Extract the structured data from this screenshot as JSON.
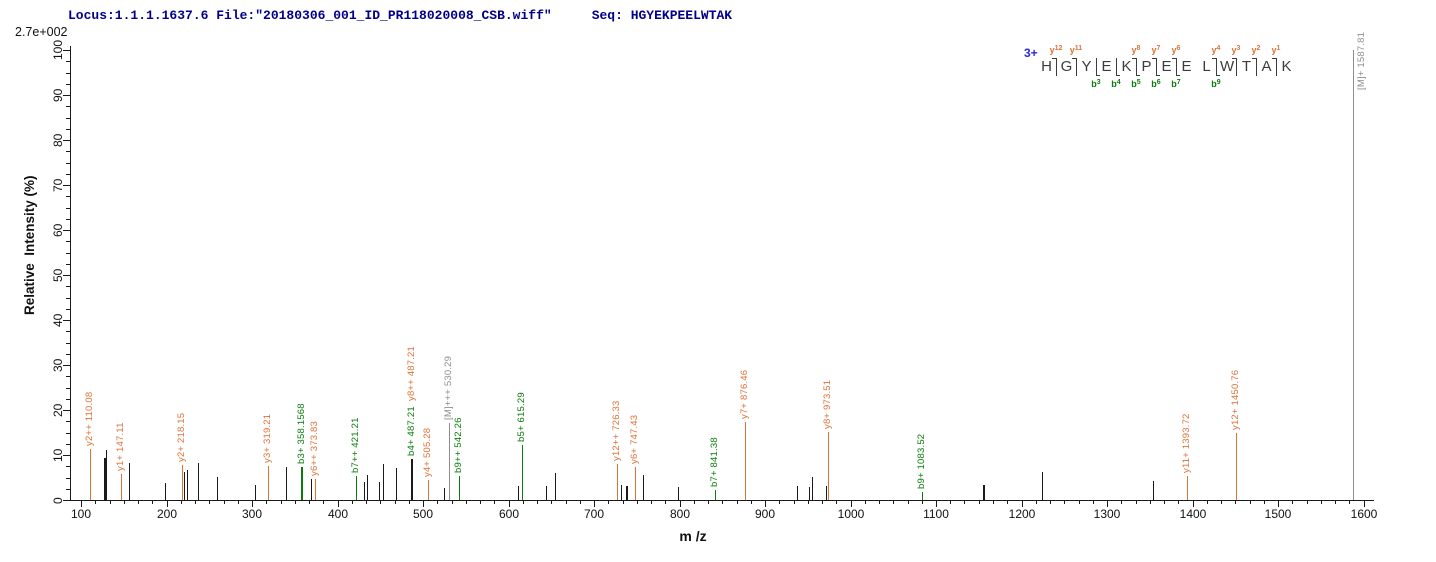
{
  "header": {
    "locus_file": "Locus:1.1.1.1637.6 File:\"20180306_001_ID_PR118020008_CSB.wiff\"",
    "seq_label_and_value": "Seq: HGYEKPEELWTAK"
  },
  "max_intensity_label": "2.7e+002",
  "colors": {
    "y_ion": "#DD7238",
    "b_ion": "#0B7B0B",
    "precursor": "#8E8E8E",
    "unassigned": "#1A1A1A",
    "header_text": "#00008B",
    "charge_state": "#2A2AD4",
    "sequence_letters": "#3C3C3C",
    "axis": "#1A1A1A"
  },
  "annotation": {
    "charge": "3+",
    "residues": [
      "H",
      "G",
      "Y",
      "E",
      "K",
      "P",
      "E",
      "E",
      "L",
      "W",
      "T",
      "A",
      "K"
    ],
    "y_ions": [
      {
        "name": "y",
        "num": "12",
        "cut": 1
      },
      {
        "name": "y",
        "num": "11",
        "cut": 2
      },
      {
        "name": "y",
        "num": "8",
        "cut": 5
      },
      {
        "name": "y",
        "num": "7",
        "cut": 6
      },
      {
        "name": "y",
        "num": "6",
        "cut": 7
      },
      {
        "name": "y",
        "num": "4",
        "cut": 9
      },
      {
        "name": "y",
        "num": "3",
        "cut": 10
      },
      {
        "name": "y",
        "num": "2",
        "cut": 11
      },
      {
        "name": "y",
        "num": "1",
        "cut": 12
      }
    ],
    "b_ions": [
      {
        "name": "b",
        "num": "3",
        "cut": 3
      },
      {
        "name": "b",
        "num": "4",
        "cut": 4
      },
      {
        "name": "b",
        "num": "5",
        "cut": 5
      },
      {
        "name": "b",
        "num": "6",
        "cut": 6
      },
      {
        "name": "b",
        "num": "7",
        "cut": 7
      },
      {
        "name": "b",
        "num": "9",
        "cut": 9
      }
    ]
  },
  "chart_data": {
    "type": "bar",
    "title": "MS/MS fragmentation spectrum",
    "xlabel": "m /z",
    "ylabel": "Relative  Intensity (%)",
    "xlim": [
      84,
      1612
    ],
    "ylim": [
      0,
      100
    ],
    "x_ticks": [
      100,
      200,
      300,
      400,
      500,
      600,
      700,
      800,
      900,
      1000,
      1100,
      1200,
      1300,
      1400,
      1500,
      1600
    ],
    "y_ticks": [
      0,
      10,
      20,
      30,
      40,
      50,
      60,
      70,
      80,
      90,
      100
    ],
    "grid": false,
    "peaks": [
      {
        "mz": 110.08,
        "intensity": 11.3,
        "type": "y",
        "labels": [
          {
            "text": "y2++ 110.08",
            "ion": "y"
          }
        ]
      },
      {
        "mz": 127.5,
        "intensity": 9.3,
        "type": "unassigned",
        "width": 2
      },
      {
        "mz": 129.8,
        "intensity": 11.1,
        "type": "unassigned"
      },
      {
        "mz": 147.11,
        "intensity": 5.8,
        "type": "y",
        "labels": [
          {
            "text": "y1+ 147.11",
            "ion": "y"
          }
        ]
      },
      {
        "mz": 156,
        "intensity": 8.2,
        "type": "unassigned"
      },
      {
        "mz": 198.5,
        "intensity": 3.8,
        "type": "unassigned"
      },
      {
        "mz": 218.15,
        "intensity": 7.8,
        "type": "y",
        "labels": [
          {
            "text": "y2+ 218.15",
            "ion": "y"
          }
        ]
      },
      {
        "mz": 220.5,
        "intensity": 6.2,
        "type": "unassigned"
      },
      {
        "mz": 223.5,
        "intensity": 6.7,
        "type": "unassigned"
      },
      {
        "mz": 237,
        "intensity": 8.2,
        "type": "unassigned"
      },
      {
        "mz": 259,
        "intensity": 5.1,
        "type": "unassigned"
      },
      {
        "mz": 303,
        "intensity": 3.3,
        "type": "unassigned"
      },
      {
        "mz": 319.21,
        "intensity": 7.6,
        "type": "y",
        "labels": [
          {
            "text": "y3+ 319.21",
            "ion": "y"
          }
        ]
      },
      {
        "mz": 340,
        "intensity": 7.3,
        "type": "unassigned"
      },
      {
        "mz": 358.1568,
        "intensity": 7.3,
        "type": "b",
        "width": 2,
        "labels": [
          {
            "text": "b3+ 358.1568",
            "ion": "b"
          }
        ]
      },
      {
        "mz": 369,
        "intensity": 4.7,
        "type": "unassigned"
      },
      {
        "mz": 373.83,
        "intensity": 4.7,
        "type": "y",
        "labels": [
          {
            "text": "y6++ 373.83",
            "ion": "y"
          }
        ]
      },
      {
        "mz": 421.21,
        "intensity": 5.3,
        "type": "b",
        "labels": [
          {
            "text": "b7++ 421.21",
            "ion": "b"
          }
        ]
      },
      {
        "mz": 431,
        "intensity": 4.0,
        "type": "unassigned"
      },
      {
        "mz": 435,
        "intensity": 5.6,
        "type": "unassigned"
      },
      {
        "mz": 449,
        "intensity": 4.0,
        "type": "unassigned"
      },
      {
        "mz": 453,
        "intensity": 8.0,
        "type": "unassigned"
      },
      {
        "mz": 468,
        "intensity": 7.1,
        "type": "unassigned"
      },
      {
        "mz": 487.21,
        "intensity": 9.1,
        "type": "unassigned",
        "width": 2,
        "labels": [
          {
            "text": "b4+ 487.21",
            "ion": "b"
          },
          {
            "text": "y8++ 487.21",
            "ion": "y"
          }
        ]
      },
      {
        "mz": 505.28,
        "intensity": 4.4,
        "type": "y",
        "labels": [
          {
            "text": "y4+ 505.28",
            "ion": "y"
          }
        ]
      },
      {
        "mz": 525,
        "intensity": 2.7,
        "type": "unassigned"
      },
      {
        "mz": 530.29,
        "intensity": 17.1,
        "type": "precursor",
        "labels": [
          {
            "text": "[M]+++ 530.29",
            "ion": "precursor"
          }
        ]
      },
      {
        "mz": 542.26,
        "intensity": 5.3,
        "type": "b",
        "labels": [
          {
            "text": "b9++ 542.26",
            "ion": "b"
          }
        ]
      },
      {
        "mz": 611,
        "intensity": 3.1,
        "type": "unassigned"
      },
      {
        "mz": 615.29,
        "intensity": 12.2,
        "type": "b",
        "labels": [
          {
            "text": "b5+ 615.29",
            "ion": "b"
          }
        ]
      },
      {
        "mz": 644,
        "intensity": 3.1,
        "type": "unassigned"
      },
      {
        "mz": 654,
        "intensity": 6.0,
        "type": "unassigned"
      },
      {
        "mz": 726.33,
        "intensity": 8.0,
        "type": "y",
        "labels": [
          {
            "text": "y12++ 726.33",
            "ion": "y"
          }
        ]
      },
      {
        "mz": 731,
        "intensity": 3.3,
        "type": "unassigned"
      },
      {
        "mz": 739,
        "intensity": 3.1,
        "type": "unassigned",
        "width": 2
      },
      {
        "mz": 747.43,
        "intensity": 7.3,
        "type": "y",
        "labels": [
          {
            "text": "y6+ 747.43",
            "ion": "y"
          }
        ]
      },
      {
        "mz": 757,
        "intensity": 5.6,
        "type": "unassigned"
      },
      {
        "mz": 798,
        "intensity": 2.9,
        "type": "unassigned"
      },
      {
        "mz": 841.38,
        "intensity": 2.2,
        "type": "b",
        "labels": [
          {
            "text": "b7+ 841.38",
            "ion": "b"
          }
        ]
      },
      {
        "mz": 876.46,
        "intensity": 17.3,
        "type": "y",
        "labels": [
          {
            "text": "y7+ 876.46",
            "ion": "y"
          }
        ]
      },
      {
        "mz": 937,
        "intensity": 3.1,
        "type": "unassigned"
      },
      {
        "mz": 951,
        "intensity": 2.9,
        "type": "unassigned"
      },
      {
        "mz": 955,
        "intensity": 5.1,
        "type": "unassigned"
      },
      {
        "mz": 971,
        "intensity": 3.1,
        "type": "unassigned"
      },
      {
        "mz": 973.51,
        "intensity": 15.1,
        "type": "y",
        "labels": [
          {
            "text": "y8+ 973.51",
            "ion": "y"
          }
        ]
      },
      {
        "mz": 1083.52,
        "intensity": 1.8,
        "type": "b",
        "labels": [
          {
            "text": "b9+ 1083.52",
            "ion": "b"
          }
        ]
      },
      {
        "mz": 1156,
        "intensity": 3.3,
        "type": "unassigned",
        "width": 2
      },
      {
        "mz": 1224,
        "intensity": 6.2,
        "type": "unassigned"
      },
      {
        "mz": 1354,
        "intensity": 4.2,
        "type": "unassigned"
      },
      {
        "mz": 1393.72,
        "intensity": 5.3,
        "type": "y",
        "labels": [
          {
            "text": "y11+ 1393.72",
            "ion": "y"
          }
        ]
      },
      {
        "mz": 1450.76,
        "intensity": 14.9,
        "type": "y",
        "labels": [
          {
            "text": "y12+ 1450.76",
            "ion": "y"
          }
        ]
      },
      {
        "mz": 1587.81,
        "intensity": 100,
        "type": "precursor",
        "labels": [
          {
            "text": "[M]+ 1587.81",
            "ion": "precursor"
          }
        ]
      }
    ]
  }
}
